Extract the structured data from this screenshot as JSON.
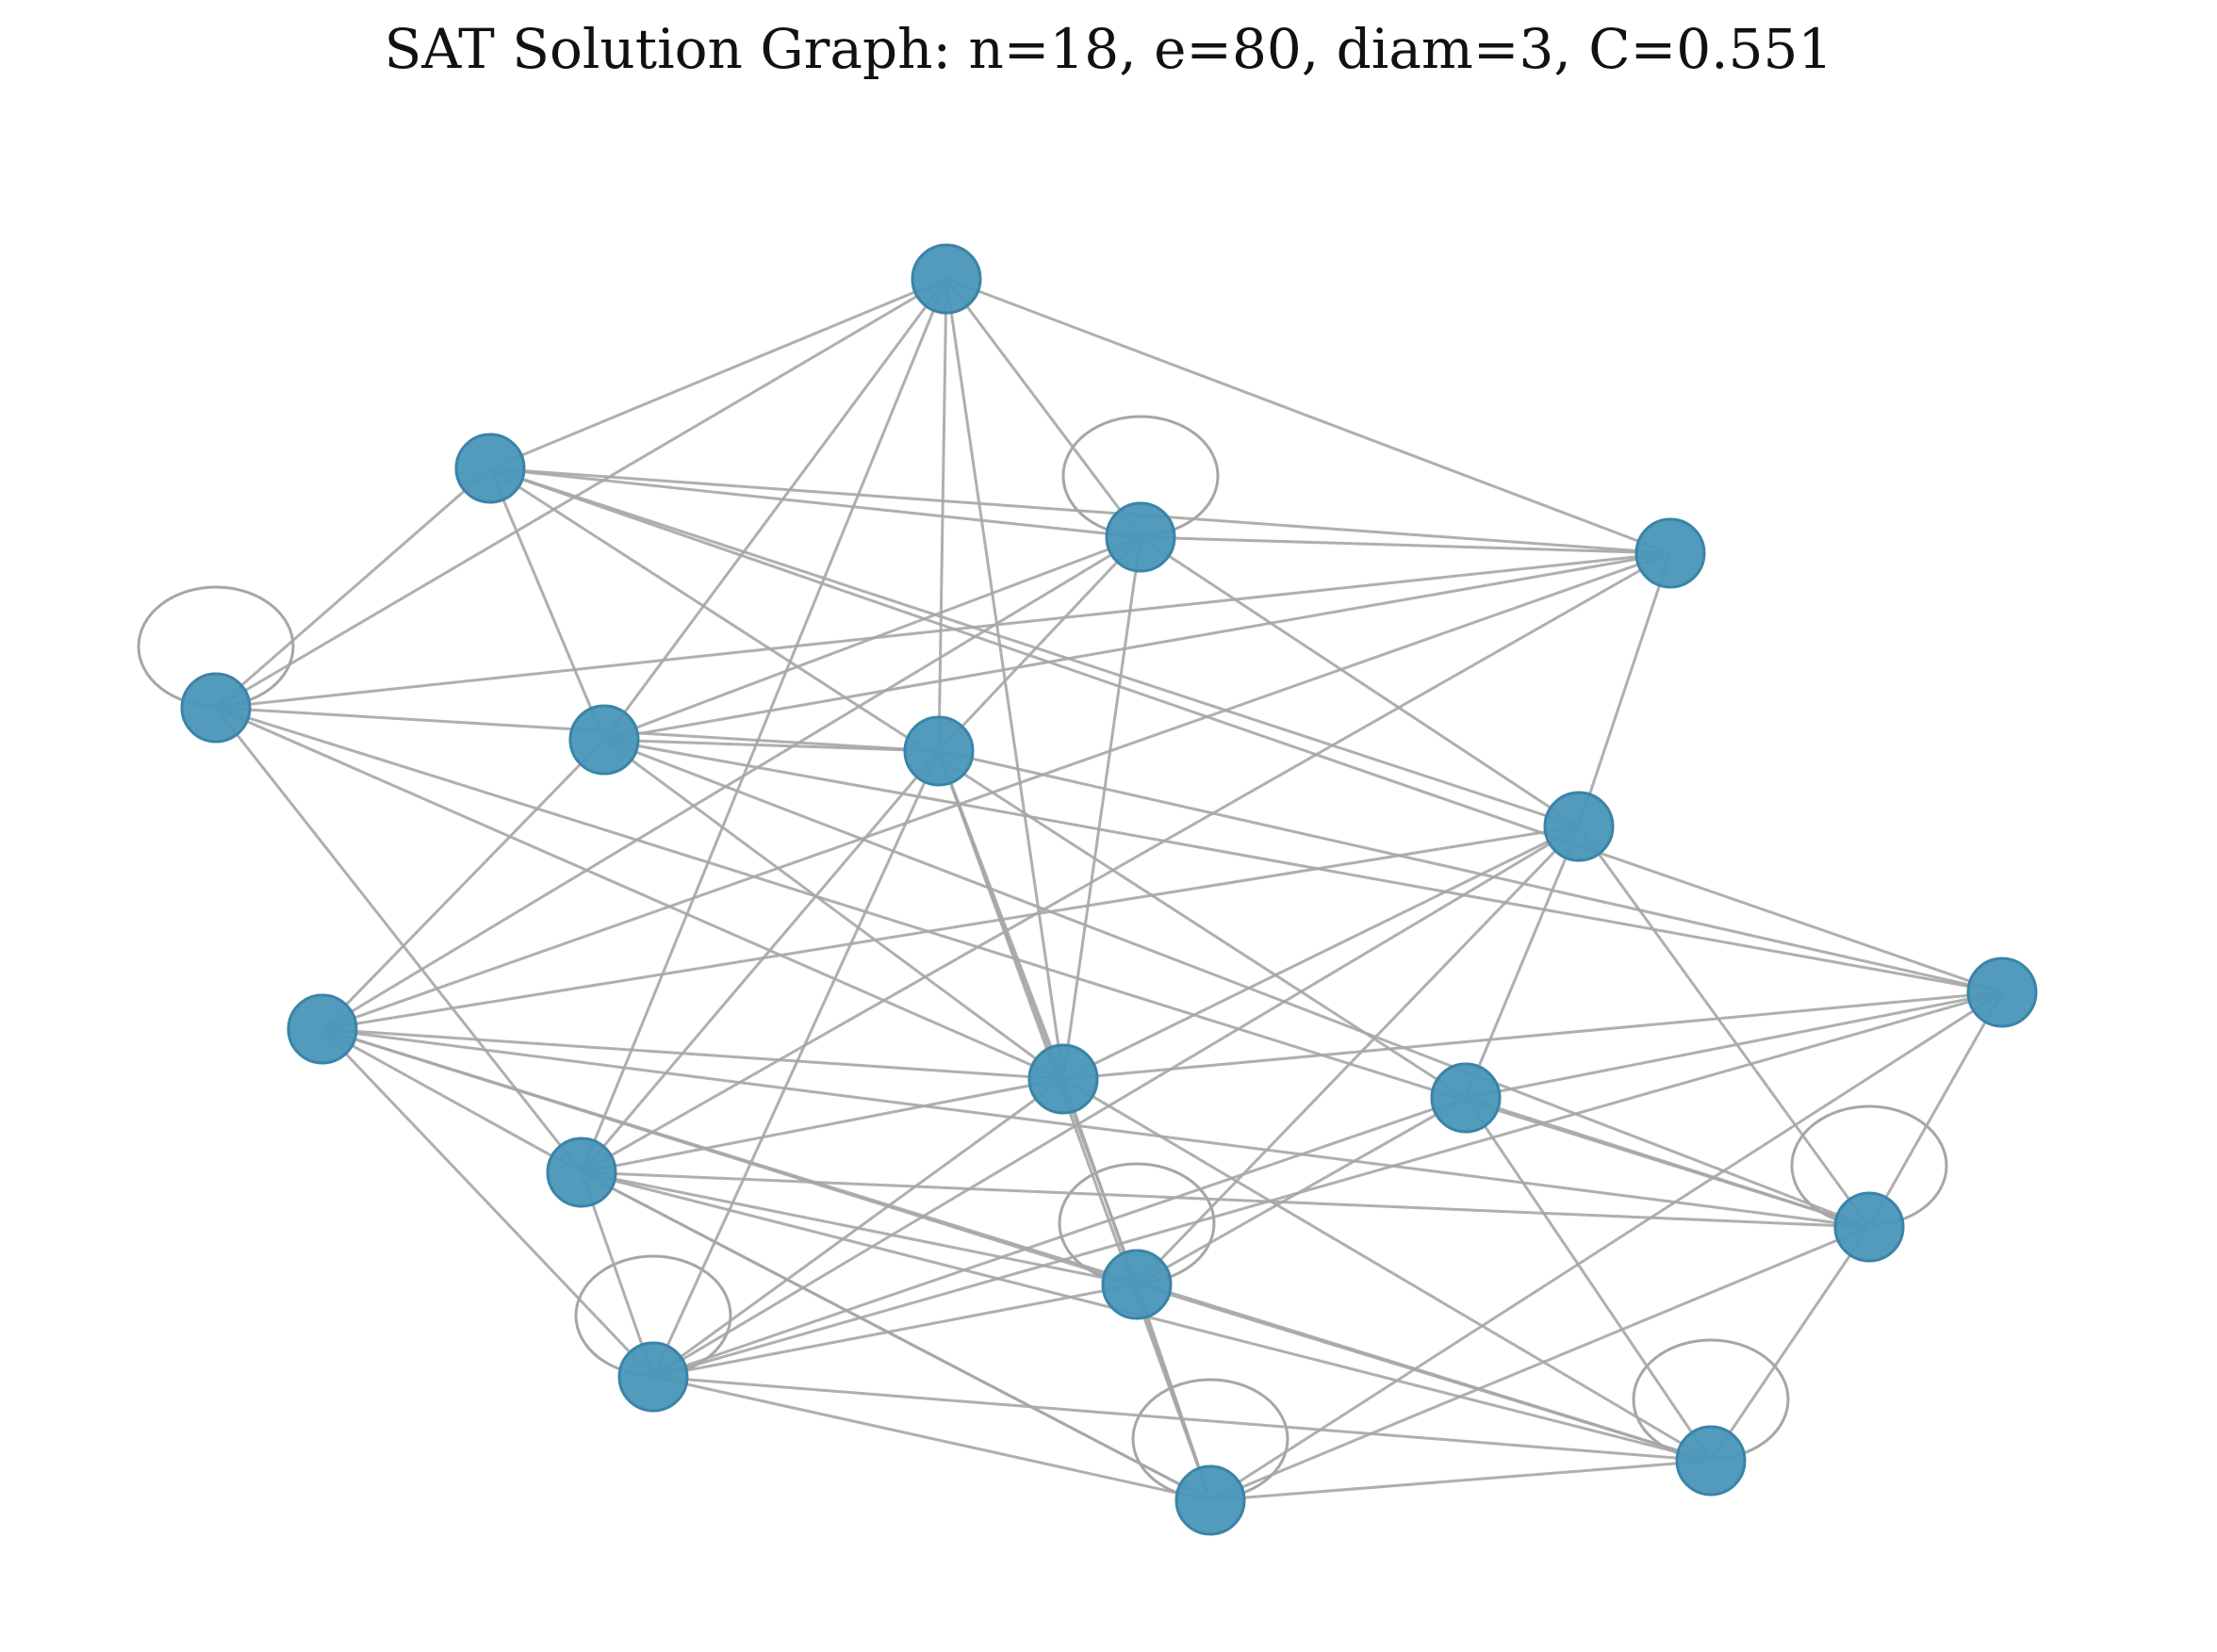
{
  "title": "SAT Solution Graph: n=18, e=80, diam=3, C=0.551",
  "colors": {
    "node_fill": "#4a96b8",
    "node_stroke": "#3a84a8",
    "edge": "#a6a6a6",
    "background": "#ffffff"
  },
  "nodes": [
    {
      "id": 0
    },
    {
      "id": 1
    },
    {
      "id": 2
    },
    {
      "id": 3
    },
    {
      "id": 4
    },
    {
      "id": 5
    },
    {
      "id": 6
    },
    {
      "id": 7
    },
    {
      "id": 8
    },
    {
      "id": 9
    },
    {
      "id": 10
    },
    {
      "id": 11
    },
    {
      "id": 12
    },
    {
      "id": 13
    },
    {
      "id": 14
    },
    {
      "id": 15
    },
    {
      "id": 16
    },
    {
      "id": 17
    }
  ],
  "self_loops": [
    2,
    4,
    13,
    14,
    15,
    16,
    17
  ],
  "edges": [
    [
      0,
      1
    ],
    [
      0,
      3
    ],
    [
      0,
      4
    ],
    [
      0,
      2
    ],
    [
      0,
      8
    ],
    [
      0,
      6
    ],
    [
      0,
      5
    ],
    [
      0,
      12
    ],
    [
      1,
      3
    ],
    [
      1,
      2
    ],
    [
      1,
      5
    ],
    [
      1,
      4
    ],
    [
      1,
      7
    ],
    [
      1,
      10
    ],
    [
      1,
      9
    ],
    [
      2,
      3
    ],
    [
      2,
      5
    ],
    [
      2,
      8
    ],
    [
      2,
      6
    ],
    [
      2,
      7
    ],
    [
      2,
      11
    ],
    [
      3,
      5
    ],
    [
      3,
      7
    ],
    [
      3,
      11
    ],
    [
      3,
      12
    ],
    [
      4,
      6
    ],
    [
      4,
      3
    ],
    [
      4,
      14
    ],
    [
      4,
      12
    ],
    [
      4,
      8
    ],
    [
      5,
      8
    ],
    [
      5,
      6
    ],
    [
      5,
      14
    ],
    [
      5,
      9
    ],
    [
      5,
      11
    ],
    [
      6,
      12
    ],
    [
      6,
      8
    ],
    [
      6,
      9
    ],
    [
      6,
      13
    ],
    [
      6,
      15
    ],
    [
      6,
      16
    ],
    [
      7,
      11
    ],
    [
      7,
      10
    ],
    [
      7,
      8
    ],
    [
      7,
      14
    ],
    [
      7,
      13
    ],
    [
      7,
      15
    ],
    [
      8,
      11
    ],
    [
      8,
      15
    ],
    [
      8,
      16
    ],
    [
      8,
      12
    ],
    [
      8,
      17
    ],
    [
      9,
      10
    ],
    [
      9,
      8
    ],
    [
      9,
      15
    ],
    [
      9,
      14
    ],
    [
      9,
      16
    ],
    [
      10,
      14
    ],
    [
      10,
      13
    ],
    [
      10,
      15
    ],
    [
      11,
      14
    ],
    [
      11,
      12
    ],
    [
      11,
      15
    ],
    [
      12,
      14
    ],
    [
      12,
      13
    ],
    [
      12,
      16
    ],
    [
      13,
      16
    ],
    [
      13,
      17
    ],
    [
      13,
      11
    ],
    [
      14,
      17
    ],
    [
      14,
      16
    ],
    [
      15,
      12
    ],
    [
      15,
      16
    ],
    [
      15,
      13
    ],
    [
      16,
      17
    ],
    [
      16,
      12
    ],
    [
      17,
      10
    ],
    [
      17,
      12
    ],
    [
      17,
      11
    ],
    [
      17,
      15
    ]
  ]
}
